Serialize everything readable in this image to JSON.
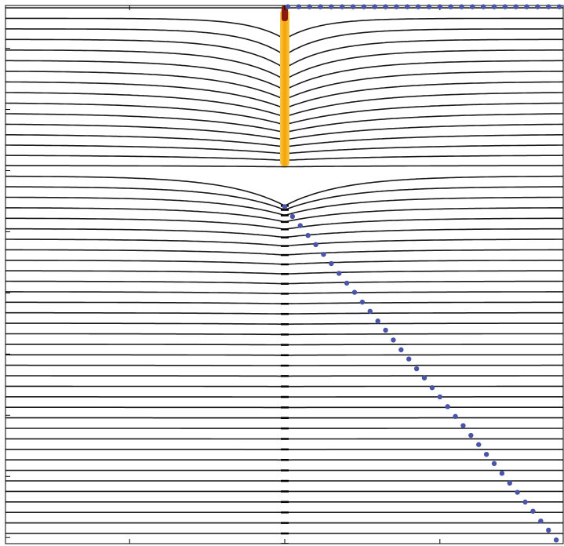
{
  "chart_data": {
    "type": "scatter",
    "xlim": [
      -1.8,
      1.8
    ],
    "xticks": [
      -1,
      0,
      1
    ],
    "ylim": [
      -0.1,
      8.7
    ],
    "yticks": [
      0,
      1,
      2,
      3,
      4,
      5,
      6,
      7,
      8
    ],
    "grid": false,
    "series": [
      {
        "color": "#4a55a8",
        "x": [
          0.02,
          0.09,
          0.16,
          0.23,
          0.3,
          0.37,
          0.44,
          0.51,
          0.58,
          0.65,
          0.72,
          0.79,
          0.86,
          0.93,
          1.0,
          1.07,
          1.14,
          1.21,
          1.28,
          1.35,
          1.42,
          1.49,
          1.56,
          1.63,
          1.7,
          1.77
        ],
        "y": [
          8.68,
          8.68,
          8.68,
          8.68,
          8.68,
          8.68,
          8.68,
          8.68,
          8.68,
          8.68,
          8.68,
          8.68,
          8.68,
          8.68,
          8.68,
          8.68,
          8.68,
          8.68,
          8.68,
          8.68,
          8.68,
          8.68,
          8.68,
          8.68,
          8.68,
          8.68
        ]
      },
      {
        "color": "#4a55a8",
        "x": [
          0,
          0.05,
          0.1,
          0.15,
          0.2,
          0.25,
          0.3,
          0.35,
          0.4,
          0.45,
          0.5,
          0.55,
          0.6,
          0.65,
          0.7,
          0.75,
          0.8,
          0.85,
          0.9,
          0.95,
          1.0,
          1.05,
          1.1,
          1.15,
          1.2,
          1.25,
          1.3,
          1.35,
          1.4,
          1.45,
          1.5,
          1.55,
          1.6,
          1.65,
          1.7,
          1.75
        ],
        "y": [
          5.41,
          5.25,
          5.1,
          4.94,
          4.79,
          4.63,
          4.48,
          4.32,
          4.16,
          4.01,
          3.85,
          3.7,
          3.54,
          3.39,
          3.23,
          3.07,
          2.92,
          2.76,
          2.61,
          2.45,
          2.3,
          2.14,
          1.98,
          1.83,
          1.67,
          1.52,
          1.36,
          1.21,
          1.05,
          0.89,
          0.74,
          0.58,
          0.43,
          0.27,
          0.12,
          -0.04
        ]
      }
    ]
  }
}
